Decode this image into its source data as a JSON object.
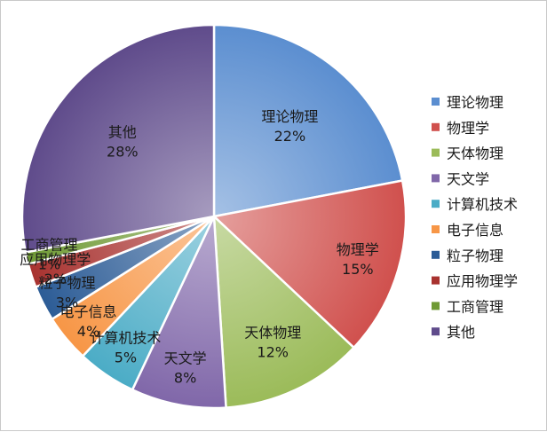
{
  "chart_data": {
    "type": "pie",
    "legend_position": "right",
    "slices": [
      {
        "name": "理论物理",
        "value": 22,
        "label": "22%",
        "color": "#5b8ed0"
      },
      {
        "name": "物理学",
        "value": 15,
        "label": "15%",
        "color": "#d0504d"
      },
      {
        "name": "天体物理",
        "value": 12,
        "label": "12%",
        "color": "#9bbb59"
      },
      {
        "name": "天文学",
        "value": 8,
        "label": "8%",
        "color": "#8067a9"
      },
      {
        "name": "计算机技术",
        "value": 5,
        "label": "5%",
        "color": "#4bacc6"
      },
      {
        "name": "电子信息",
        "value": 4,
        "label": "4%",
        "color": "#f79646"
      },
      {
        "name": "粒子物理",
        "value": 3,
        "label": "3%",
        "color": "#2c5c96"
      },
      {
        "name": "应用物理学",
        "value": 2,
        "label": "2%",
        "color": "#a8322f"
      },
      {
        "name": "工商管理",
        "value": 1,
        "label": "1%",
        "color": "#6f9a35"
      },
      {
        "name": "其他",
        "value": 28,
        "label": "28%",
        "color": "#5f4b8b"
      }
    ]
  }
}
